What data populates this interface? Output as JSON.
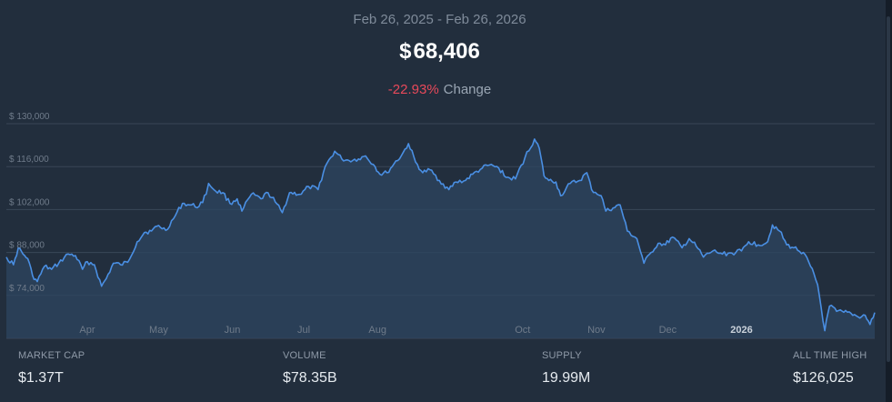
{
  "header": {
    "date_range": "Feb 26, 2025 - Feb 26, 2026",
    "price_currency": "$",
    "price_value": "68,406",
    "change_pct": "-22.93%",
    "change_label": "Change"
  },
  "stats": {
    "market_cap": {
      "label": "MARKET CAP",
      "value": "$1.37T"
    },
    "volume": {
      "label": "VOLUME",
      "value": "$78.35B"
    },
    "supply": {
      "label": "SUPPLY",
      "value": "19.99M"
    },
    "all_time_high": {
      "label": "ALL TIME HIGH",
      "value": "$126,025"
    }
  },
  "colors": {
    "background": "#222e3d",
    "line": "#4a8fe3",
    "area_fill": "#2e4560",
    "grid": "#3a4757",
    "negative": "#e8495a"
  },
  "chart_data": {
    "type": "area",
    "title": "",
    "xlabel": "",
    "ylabel": "",
    "ylim": [
      60000,
      130000
    ],
    "xlim": [
      "2025-02-26",
      "2026-02-26"
    ],
    "y_ticks": [
      {
        "value": 74000,
        "label": "$ 74,000"
      },
      {
        "value": 88000,
        "label": "$ 88,000"
      },
      {
        "value": 102000,
        "label": "$ 102,000"
      },
      {
        "value": 116000,
        "label": "$ 116,000"
      },
      {
        "value": 130000,
        "label": "$ 130,000"
      }
    ],
    "x_ticks": [
      {
        "date": "2025-04-01",
        "label": "Apr",
        "bold": false
      },
      {
        "date": "2025-05-01",
        "label": "May",
        "bold": false
      },
      {
        "date": "2025-06-01",
        "label": "Jun",
        "bold": false
      },
      {
        "date": "2025-07-01",
        "label": "Jul",
        "bold": false
      },
      {
        "date": "2025-08-01",
        "label": "Aug",
        "bold": false
      },
      {
        "date": "2025-10-01",
        "label": "Oct",
        "bold": false
      },
      {
        "date": "2025-11-01",
        "label": "Nov",
        "bold": false
      },
      {
        "date": "2025-12-01",
        "label": "Dec",
        "bold": false
      },
      {
        "date": "2026-01-01",
        "label": "2026",
        "bold": true
      }
    ],
    "grid": true,
    "series": [
      {
        "points": [
          [
            "2025-02-26",
            86500
          ],
          [
            "2025-03-01",
            84000
          ],
          [
            "2025-03-03",
            89500
          ],
          [
            "2025-03-05",
            87500
          ],
          [
            "2025-03-07",
            86000
          ],
          [
            "2025-03-09",
            80500
          ],
          [
            "2025-03-11",
            78500
          ],
          [
            "2025-03-14",
            83500
          ],
          [
            "2025-03-17",
            82500
          ],
          [
            "2025-03-20",
            84500
          ],
          [
            "2025-03-24",
            87500
          ],
          [
            "2025-03-27",
            87000
          ],
          [
            "2025-03-30",
            82500
          ],
          [
            "2025-04-01",
            85000
          ],
          [
            "2025-04-04",
            84000
          ],
          [
            "2025-04-07",
            77000
          ],
          [
            "2025-04-09",
            79500
          ],
          [
            "2025-04-12",
            84500
          ],
          [
            "2025-04-15",
            84000
          ],
          [
            "2025-04-18",
            84800
          ],
          [
            "2025-04-22",
            91500
          ],
          [
            "2025-04-25",
            94500
          ],
          [
            "2025-04-28",
            95000
          ],
          [
            "2025-05-01",
            96800
          ],
          [
            "2025-05-04",
            95200
          ],
          [
            "2025-05-08",
            100000
          ],
          [
            "2025-05-11",
            104000
          ],
          [
            "2025-05-14",
            103500
          ],
          [
            "2025-05-18",
            103000
          ],
          [
            "2025-05-21",
            107000
          ],
          [
            "2025-05-22",
            110500
          ],
          [
            "2025-05-25",
            108000
          ],
          [
            "2025-05-28",
            107500
          ],
          [
            "2025-05-31",
            104000
          ],
          [
            "2025-06-03",
            105500
          ],
          [
            "2025-06-05",
            101500
          ],
          [
            "2025-06-09",
            107000
          ],
          [
            "2025-06-13",
            105500
          ],
          [
            "2025-06-16",
            107500
          ],
          [
            "2025-06-19",
            104500
          ],
          [
            "2025-06-22",
            101000
          ],
          [
            "2025-06-25",
            107500
          ],
          [
            "2025-06-30",
            107000
          ],
          [
            "2025-07-03",
            109500
          ],
          [
            "2025-07-07",
            108500
          ],
          [
            "2025-07-10",
            116000
          ],
          [
            "2025-07-14",
            121000
          ],
          [
            "2025-07-17",
            118500
          ],
          [
            "2025-07-20",
            118000
          ],
          [
            "2025-07-24",
            118500
          ],
          [
            "2025-07-27",
            119500
          ],
          [
            "2025-07-31",
            116000
          ],
          [
            "2025-08-02",
            113500
          ],
          [
            "2025-08-05",
            114000
          ],
          [
            "2025-08-08",
            117000
          ],
          [
            "2025-08-11",
            119500
          ],
          [
            "2025-08-14",
            123500
          ],
          [
            "2025-08-17",
            117500
          ],
          [
            "2025-08-20",
            114000
          ],
          [
            "2025-08-23",
            115000
          ],
          [
            "2025-08-27",
            111500
          ],
          [
            "2025-08-31",
            108500
          ],
          [
            "2025-09-03",
            111000
          ],
          [
            "2025-09-07",
            111500
          ],
          [
            "2025-09-10",
            113500
          ],
          [
            "2025-09-14",
            115500
          ],
          [
            "2025-09-17",
            116500
          ],
          [
            "2025-09-21",
            115500
          ],
          [
            "2025-09-24",
            112500
          ],
          [
            "2025-09-28",
            112000
          ],
          [
            "2025-10-02",
            119000
          ],
          [
            "2025-10-06",
            125000
          ],
          [
            "2025-10-08",
            122000
          ],
          [
            "2025-10-10",
            113000
          ],
          [
            "2025-10-12",
            111500
          ],
          [
            "2025-10-15",
            111000
          ],
          [
            "2025-10-17",
            106500
          ],
          [
            "2025-10-21",
            110500
          ],
          [
            "2025-10-25",
            111500
          ],
          [
            "2025-10-28",
            114000
          ],
          [
            "2025-10-30",
            108500
          ],
          [
            "2025-11-03",
            106500
          ],
          [
            "2025-11-05",
            101500
          ],
          [
            "2025-11-08",
            102500
          ],
          [
            "2025-11-11",
            103500
          ],
          [
            "2025-11-14",
            95000
          ],
          [
            "2025-11-18",
            92500
          ],
          [
            "2025-11-21",
            84500
          ],
          [
            "2025-11-24",
            88000
          ],
          [
            "2025-11-27",
            91000
          ],
          [
            "2025-11-30",
            90500
          ],
          [
            "2025-12-03",
            93000
          ],
          [
            "2025-12-07",
            89500
          ],
          [
            "2025-12-10",
            92500
          ],
          [
            "2025-12-13",
            90000
          ],
          [
            "2025-12-16",
            86500
          ],
          [
            "2025-12-20",
            88500
          ],
          [
            "2025-12-24",
            87500
          ],
          [
            "2025-12-28",
            87800
          ],
          [
            "2026-01-01",
            88500
          ],
          [
            "2026-01-04",
            91500
          ],
          [
            "2026-01-08",
            90500
          ],
          [
            "2026-01-12",
            91500
          ],
          [
            "2026-01-14",
            97000
          ],
          [
            "2026-01-17",
            95000
          ],
          [
            "2026-01-20",
            90500
          ],
          [
            "2026-01-23",
            89500
          ],
          [
            "2026-01-27",
            88000
          ],
          [
            "2026-01-30",
            83500
          ],
          [
            "2026-02-02",
            77500
          ],
          [
            "2026-02-05",
            62500
          ],
          [
            "2026-02-07",
            70500
          ],
          [
            "2026-02-10",
            68800
          ],
          [
            "2026-02-13",
            68500
          ],
          [
            "2026-02-16",
            68200
          ],
          [
            "2026-02-19",
            67000
          ],
          [
            "2026-02-22",
            67500
          ],
          [
            "2026-02-24",
            64500
          ],
          [
            "2026-02-26",
            68400
          ]
        ]
      }
    ]
  }
}
